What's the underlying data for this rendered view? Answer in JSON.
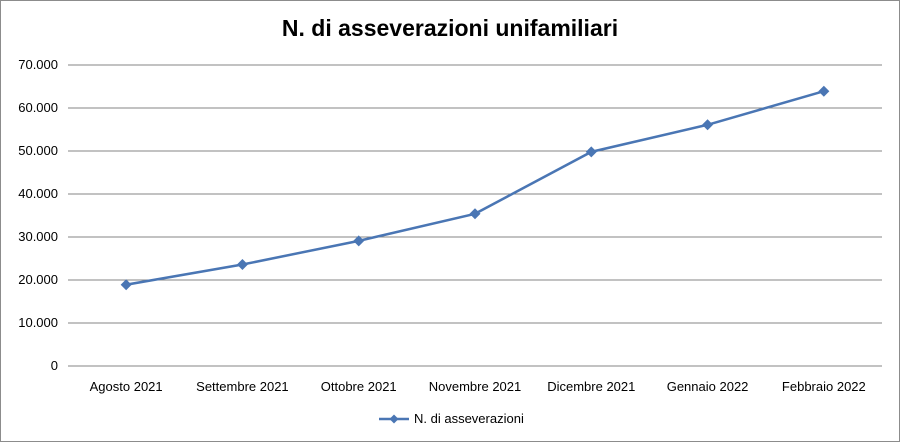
{
  "chart_data": {
    "type": "line",
    "title": "N. di asseverazioni unifamiliari",
    "xlabel": "",
    "ylabel": "",
    "categories": [
      "Agosto 2021",
      "Settembre 2021",
      "Ottobre 2021",
      "Novembre 2021",
      "Dicembre 2021",
      "Gennaio 2022",
      "Febbraio 2022"
    ],
    "series": [
      {
        "name": "N. di asseverazioni",
        "values": [
          18900,
          23600,
          29100,
          35400,
          49800,
          56100,
          63900
        ],
        "color": "#4a76b4",
        "marker": "diamond"
      }
    ],
    "ylim": [
      0,
      70000
    ],
    "yticks": [
      {
        "value": 0,
        "label": "0"
      },
      {
        "value": 10000,
        "label": "10.000"
      },
      {
        "value": 20000,
        "label": "20.000"
      },
      {
        "value": 30000,
        "label": "30.000"
      },
      {
        "value": 40000,
        "label": "40.000"
      },
      {
        "value": 50000,
        "label": "50.000"
      },
      {
        "value": 60000,
        "label": "60.000"
      },
      {
        "value": 70000,
        "label": "70.000"
      }
    ],
    "grid": true,
    "legend": "bottom"
  }
}
